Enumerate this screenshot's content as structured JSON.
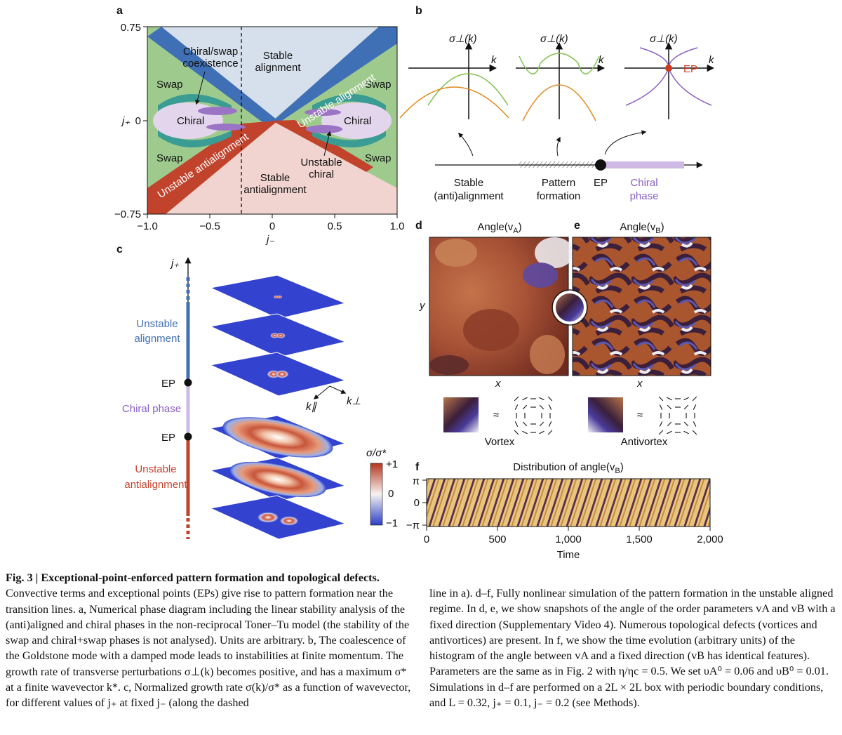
{
  "figure": {
    "a": {
      "label": "a",
      "y_axis": "j₊",
      "x_axis": "j₋",
      "yticks": [
        "0.75",
        "0",
        "−0.75"
      ],
      "xticks": [
        "−1.0",
        "−0.5",
        "0",
        "0.5",
        "1.0"
      ],
      "stable_alignment": [
        "Stable",
        "alignment"
      ],
      "coexistence": [
        "Chiral/swap",
        "coexistence"
      ],
      "swap": [
        "Swap",
        "Swap",
        "Swap",
        "Swap"
      ],
      "chiral": [
        "Chiral",
        "Chiral"
      ],
      "unstable_alignment": "Unstable alignment",
      "unstable_antialignment": "Unstable antialignment",
      "stable_antialignment": [
        "Stable",
        "antialignment"
      ],
      "unstable_chiral": [
        "Unstable",
        "chiral"
      ]
    },
    "b": {
      "label": "b",
      "sigma": [
        "σ⊥(k)",
        "σ⊥(k)",
        "σ⊥(k)"
      ],
      "k": [
        "k",
        "k",
        "k"
      ],
      "ep_plot": "EP",
      "stable": [
        "Stable",
        "(anti)alignment"
      ],
      "pattern": [
        "Pattern",
        "formation"
      ],
      "ep": "EP",
      "chiral_phase": [
        "Chiral",
        "phase"
      ]
    },
    "c": {
      "label": "c",
      "axis": "j₊",
      "unstable_alignment": [
        "Unstable",
        "alignment"
      ],
      "ep_upper": "EP",
      "chiral_phase": "Chiral phase",
      "ep_lower": "EP",
      "unstable_antialignment": [
        "Unstable",
        "antialignment"
      ],
      "k_par": "k∥",
      "k_perp": "k⊥",
      "colorbar_title": "σ/σ*",
      "colorbar_ticks": [
        "+1",
        "0",
        "−1"
      ]
    },
    "d": {
      "label": "d",
      "title": {
        "text": "Angle(v",
        "sub": "A",
        "close": ")"
      },
      "x": "x",
      "y": "y",
      "approx": "≈",
      "caption": "Vortex"
    },
    "e": {
      "label": "e",
      "title": {
        "text": "Angle(v",
        "sub": "B",
        "close": ")"
      },
      "x": "x",
      "approx": "≈",
      "caption": "Antivortex"
    },
    "f": {
      "label": "f",
      "title": {
        "text": "Distribution of angle(v",
        "sub": "B",
        "close": ")"
      },
      "yticks": [
        "π",
        "0",
        "−π"
      ],
      "xticks": [
        "0",
        "500",
        "1,000",
        "1,500",
        "2,000"
      ],
      "x_axis": "Time"
    }
  },
  "caption": {
    "title": "Fig. 3 | Exceptional-point-enforced pattern formation and topological defects.",
    "column1": "Convective terms and exceptional points (EPs) give rise to pattern formation near the transition lines. a, Numerical phase diagram including the linear stability analysis of the (anti)aligned and chiral phases in the non-reciprocal Toner–Tu model (the stability of the swap and chiral+swap phases is not analysed). Units are arbitrary. b, The coalescence of the Goldstone mode with a damped mode leads to instabilities at finite momentum. The growth rate of transverse perturbations σ⊥(k) becomes positive, and has a maximum σ* at a finite wavevector k*. c, Normalized growth rate σ(k)/σ* as a function of wavevector, for different values of j₊ at fixed j₋ (along the dashed",
    "column2": "line in a). d–f, Fully nonlinear simulation of the pattern formation in the unstable aligned regime. In d, e, we show snapshots of the angle of the order parameters vA and vB with a fixed direction (Supplementary Video 4). Numerous topological defects (vortices and antivortices) are present. In f, we show the time evolution (arbitrary units) of the histogram of the angle between vA and a fixed direction (vB has identical features). Parameters are the same as in Fig. 2 with η/ηc = 0.5. We set υA⁰ = 0.06 and υB⁰ = 0.01. Simulations in d–f are performed on a 2L × 2L box with periodic boundary conditions, and L = 0.32, j₊ = 0.1, j₋ = 0.2 (see Methods)."
  }
}
